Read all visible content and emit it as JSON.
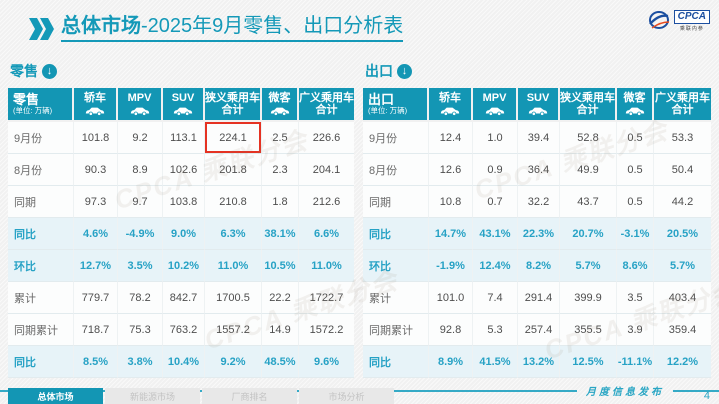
{
  "header": {
    "chevron_icon": "double-chevron-right-icon",
    "title_primary": "总体市场",
    "title_secondary": "-2025年9月零售、出口分析表",
    "logo": {
      "name": "CPCA",
      "subtitle": "乘联内参"
    }
  },
  "watermark_text": "CPCA 乘联分会",
  "tables": [
    {
      "id": "retail",
      "section_label": "零售",
      "unit_note": "(单位: 万辆)",
      "columns": [
        {
          "label": "轿车",
          "icon": "sedan-icon"
        },
        {
          "label": "MPV",
          "icon": "mpv-icon"
        },
        {
          "label": "SUV",
          "icon": "suv-icon"
        },
        {
          "label": "狭义乘用车",
          "sub": "合计"
        },
        {
          "label": "微客",
          "icon": "microvan-icon"
        },
        {
          "label": "广义乘用车",
          "sub": "合计"
        }
      ],
      "rows": [
        {
          "label": "9月份",
          "type": "normal",
          "highlight_col": 3,
          "values": [
            "101.8",
            "9.2",
            "113.1",
            "224.1",
            "2.5",
            "226.6"
          ]
        },
        {
          "label": "8月份",
          "type": "normal",
          "values": [
            "90.3",
            "8.9",
            "102.6",
            "201.8",
            "2.3",
            "204.1"
          ]
        },
        {
          "label": "同期",
          "type": "normal",
          "values": [
            "97.3",
            "9.7",
            "103.8",
            "210.8",
            "1.8",
            "212.6"
          ]
        },
        {
          "label": "同比",
          "type": "percent",
          "values": [
            "4.6%",
            "-4.9%",
            "9.0%",
            "6.3%",
            "38.1%",
            "6.6%"
          ]
        },
        {
          "label": "环比",
          "type": "percent",
          "values": [
            "12.7%",
            "3.5%",
            "10.2%",
            "11.0%",
            "10.5%",
            "11.0%"
          ]
        },
        {
          "label": "累计",
          "type": "normal",
          "values": [
            "779.7",
            "78.2",
            "842.7",
            "1700.5",
            "22.2",
            "1722.7"
          ]
        },
        {
          "label": "同期累计",
          "type": "normal",
          "values": [
            "718.7",
            "75.3",
            "763.2",
            "1557.2",
            "14.9",
            "1572.2"
          ]
        },
        {
          "label": "同比",
          "type": "percent",
          "values": [
            "8.5%",
            "3.8%",
            "10.4%",
            "9.2%",
            "48.5%",
            "9.6%"
          ]
        }
      ]
    },
    {
      "id": "export",
      "section_label": "出口",
      "unit_note": "(单位: 万辆)",
      "columns": [
        {
          "label": "轿车",
          "icon": "sedan-icon"
        },
        {
          "label": "MPV",
          "icon": "mpv-icon"
        },
        {
          "label": "SUV",
          "icon": "suv-icon"
        },
        {
          "label": "狭义乘用车",
          "sub": "合计"
        },
        {
          "label": "微客",
          "icon": "microvan-icon"
        },
        {
          "label": "广义乘用车",
          "sub": "合计"
        }
      ],
      "rows": [
        {
          "label": "9月份",
          "type": "normal",
          "values": [
            "12.4",
            "1.0",
            "39.4",
            "52.8",
            "0.5",
            "53.3"
          ]
        },
        {
          "label": "8月份",
          "type": "normal",
          "values": [
            "12.6",
            "0.9",
            "36.4",
            "49.9",
            "0.5",
            "50.4"
          ]
        },
        {
          "label": "同期",
          "type": "normal",
          "values": [
            "10.8",
            "0.7",
            "32.2",
            "43.7",
            "0.5",
            "44.2"
          ]
        },
        {
          "label": "同比",
          "type": "percent",
          "values": [
            "14.7%",
            "43.1%",
            "22.3%",
            "20.7%",
            "-3.1%",
            "20.5%"
          ]
        },
        {
          "label": "环比",
          "type": "percent",
          "values": [
            "-1.9%",
            "12.4%",
            "8.2%",
            "5.7%",
            "8.6%",
            "5.7%"
          ]
        },
        {
          "label": "累计",
          "type": "normal",
          "values": [
            "101.0",
            "7.4",
            "291.4",
            "399.9",
            "3.5",
            "403.4"
          ]
        },
        {
          "label": "同期累计",
          "type": "normal",
          "values": [
            "92.8",
            "5.3",
            "257.4",
            "355.5",
            "3.9",
            "359.4"
          ]
        },
        {
          "label": "同比",
          "type": "percent",
          "values": [
            "8.9%",
            "41.5%",
            "13.2%",
            "12.5%",
            "-11.1%",
            "12.2%"
          ]
        }
      ]
    }
  ],
  "footer": {
    "tabs": [
      {
        "label": "总体市场",
        "active": true
      },
      {
        "label": "新能源市场",
        "active": false
      },
      {
        "label": "厂商排名",
        "active": false
      },
      {
        "label": "市场分析",
        "active": false
      }
    ],
    "publication_label": "月度信息发布",
    "page_number": "4"
  },
  "colors": {
    "accent_teal": "#1396b4",
    "percent_text": "#27a2c5",
    "highlight_red": "#e53222"
  }
}
